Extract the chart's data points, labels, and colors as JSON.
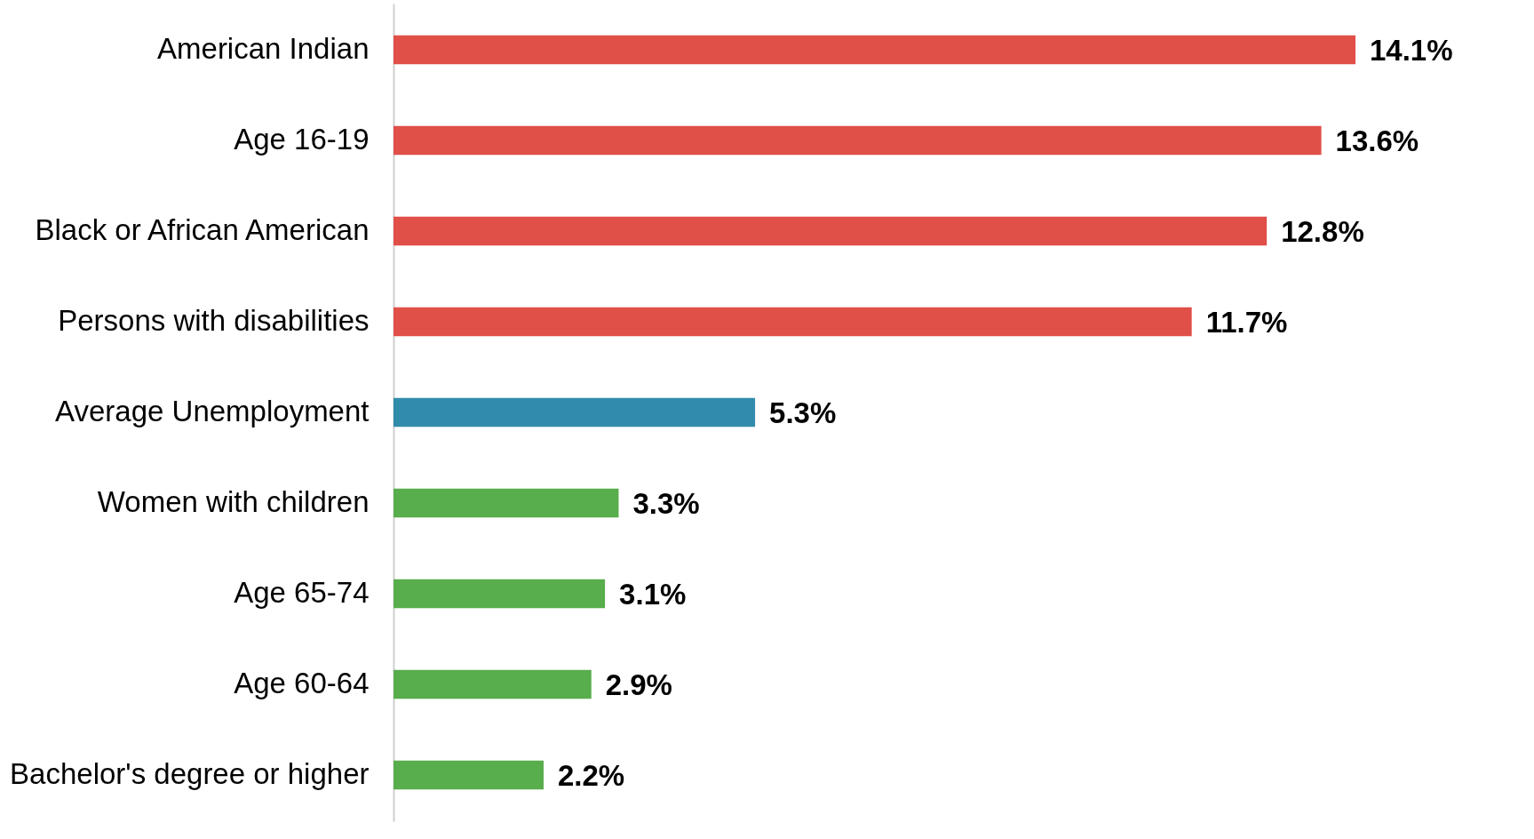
{
  "chart_data": {
    "type": "bar",
    "orientation": "horizontal",
    "categories": [
      "American Indian",
      "Age 16-19",
      "Black or African American",
      "Persons with disabilities",
      "Average Unemployment",
      "Women with children",
      "Age 65-74",
      "Age 60-64",
      "Bachelor's degree or higher"
    ],
    "values": [
      14.1,
      13.6,
      12.8,
      11.7,
      5.3,
      3.3,
      3.1,
      2.9,
      2.2
    ],
    "colors": [
      "#e04f48",
      "#e04f48",
      "#e04f48",
      "#e04f48",
      "#318bab",
      "#58ad4c",
      "#58ad4c",
      "#58ad4c",
      "#58ad4c"
    ],
    "value_labels": [
      "14.1%",
      "13.6%",
      "12.8%",
      "11.7%",
      "5.3%",
      "3.3%",
      "3.1%",
      "2.9%",
      "2.2%"
    ],
    "grid": false
  }
}
